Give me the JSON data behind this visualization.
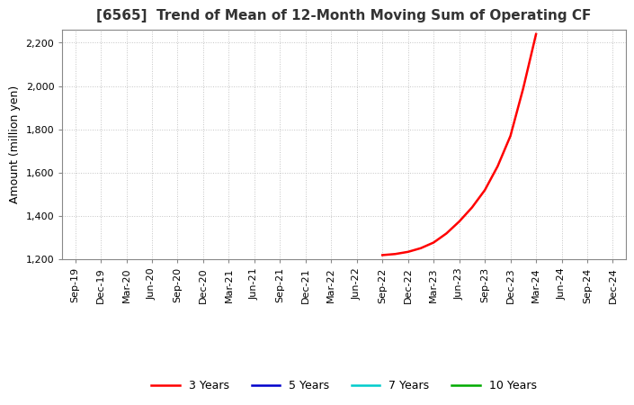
{
  "title": "[6565]  Trend of Mean of 12-Month Moving Sum of Operating CF",
  "ylabel": "Amount (million yen)",
  "ylim": [
    1200,
    2260
  ],
  "yticks": [
    1200,
    1400,
    1600,
    1800,
    2000,
    2200
  ],
  "background_color": "#ffffff",
  "grid_color": "#aaaaaa",
  "line_3y_color": "#ff0000",
  "line_5y_color": "#0000cc",
  "line_7y_color": "#00cccc",
  "line_10y_color": "#00aa00",
  "legend_labels": [
    "3 Years",
    "5 Years",
    "7 Years",
    "10 Years"
  ],
  "x_tick_labels": [
    "Sep-19",
    "Dec-19",
    "Mar-20",
    "Jun-20",
    "Sep-20",
    "Dec-20",
    "Mar-21",
    "Jun-21",
    "Sep-21",
    "Dec-21",
    "Mar-22",
    "Jun-22",
    "Sep-22",
    "Dec-22",
    "Mar-23",
    "Jun-23",
    "Sep-23",
    "Dec-23",
    "Mar-24",
    "Jun-24",
    "Sep-24",
    "Dec-24"
  ],
  "line_3y_x": [
    12,
    12.5,
    13,
    13.5,
    14,
    14.5,
    15,
    15.5,
    16,
    16.5,
    17,
    17.5,
    18
  ],
  "line_3y_y": [
    1220,
    1225,
    1235,
    1252,
    1278,
    1320,
    1375,
    1440,
    1520,
    1630,
    1770,
    1990,
    2240
  ],
  "title_fontsize": 11,
  "tick_fontsize": 8,
  "ylabel_fontsize": 9,
  "legend_fontsize": 9
}
